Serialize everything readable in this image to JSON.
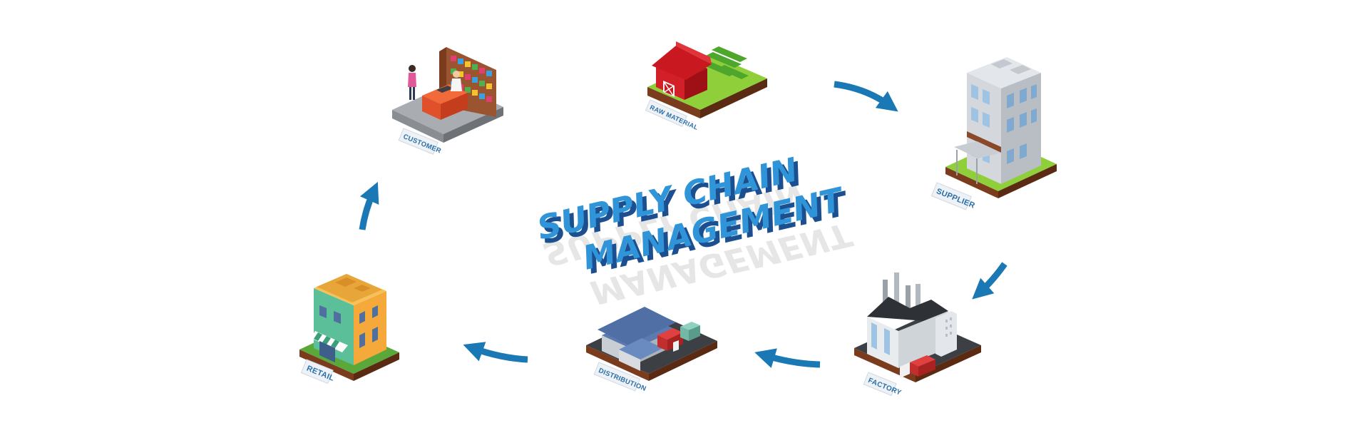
{
  "title": {
    "line1": "SUPPLY CHAIN",
    "line2": "MANAGEMENT"
  },
  "nodes": {
    "raw_material": "RAW MATERIAL",
    "supplier": "SUPPLIER",
    "factory": "FACTORY",
    "distribution": "DISTRIBUTION",
    "retail": "RETAIL",
    "customer": "CUSTOMER"
  },
  "colors": {
    "arrow": "#1a78b4",
    "title_face": "#2f94d8",
    "title_depth": "#1c4f8f",
    "label_text": "#2a6fa8"
  },
  "icons": {
    "raw_material": "barn-field-icon",
    "supplier": "office-building-icon",
    "factory": "factory-icon",
    "distribution": "warehouse-trucks-icon",
    "retail": "shop-building-icon",
    "customer": "checkout-counter-icon"
  }
}
